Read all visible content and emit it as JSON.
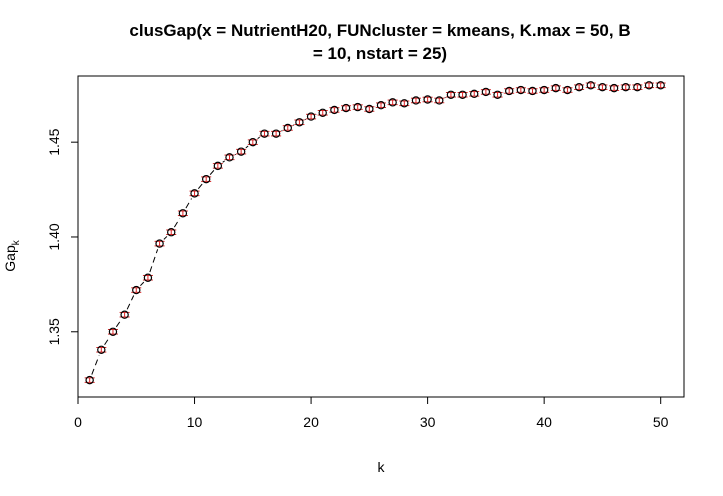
{
  "chart_data": {
    "type": "scatter",
    "title_lines": [
      "clusGap(x = NutrientH20, FUNcluster = kmeans, K.max = 50, B",
      "= 10, nstart = 25)"
    ],
    "xlabel": "k",
    "ylabel_main": "Gap",
    "ylabel_subscript": "k",
    "xlim": [
      0,
      52
    ],
    "ylim": [
      1.3156,
      1.4849
    ],
    "x_ticks": [
      0,
      10,
      20,
      30,
      40,
      50
    ],
    "x_tick_labels": [
      "0",
      "10",
      "20",
      "30",
      "40",
      "50"
    ],
    "y_ticks": [
      1.35,
      1.4,
      1.45
    ],
    "y_tick_labels": [
      "1.35",
      "1.40",
      "1.45"
    ],
    "grid": false,
    "series": [
      {
        "x": [
          1,
          2,
          3,
          4,
          5,
          6,
          7,
          8,
          9,
          10,
          11,
          12,
          13,
          14,
          15,
          16,
          17,
          18,
          19,
          20,
          21,
          22,
          23,
          24,
          25,
          26,
          27,
          28,
          29,
          30,
          31,
          32,
          33,
          34,
          35,
          36,
          37,
          38,
          39,
          40,
          41,
          42,
          43,
          44,
          45,
          46,
          47,
          48,
          49,
          50
        ],
        "values": [
          1.3245,
          1.3405,
          1.35,
          1.359,
          1.372,
          1.3785,
          1.3965,
          1.4025,
          1.4125,
          1.423,
          1.4305,
          1.4375,
          1.442,
          1.445,
          1.45,
          1.4545,
          1.4545,
          1.4575,
          1.4605,
          1.4635,
          1.4655,
          1.467,
          1.468,
          1.4685,
          1.4675,
          1.4695,
          1.471,
          1.4705,
          1.472,
          1.4725,
          1.472,
          1.475,
          1.475,
          1.4755,
          1.4765,
          1.475,
          1.477,
          1.4775,
          1.477,
          1.4775,
          1.4785,
          1.4775,
          1.479,
          1.48,
          1.479,
          1.4785,
          1.479,
          1.479,
          1.48,
          1.48
        ],
        "se": [
          0.0012,
          0.0012,
          0.0012,
          0.0012,
          0.0012,
          0.0012,
          0.0012,
          0.0012,
          0.0012,
          0.0012,
          0.0012,
          0.0012,
          0.0012,
          0.0012,
          0.0012,
          0.0012,
          0.0012,
          0.0012,
          0.0012,
          0.0012,
          0.0012,
          0.0012,
          0.0012,
          0.0012,
          0.0012,
          0.0012,
          0.0012,
          0.0012,
          0.0012,
          0.0012,
          0.0012,
          0.0012,
          0.0012,
          0.0012,
          0.0012,
          0.0012,
          0.0012,
          0.0012,
          0.0012,
          0.0012,
          0.0012,
          0.0012,
          0.0012,
          0.0012,
          0.0012,
          0.0012,
          0.0012,
          0.0012,
          0.0012,
          0.0012
        ],
        "point_color": "#000000",
        "errorbar_color": "#d62728",
        "line_color": "#000000",
        "line_style": "dashed"
      }
    ]
  }
}
